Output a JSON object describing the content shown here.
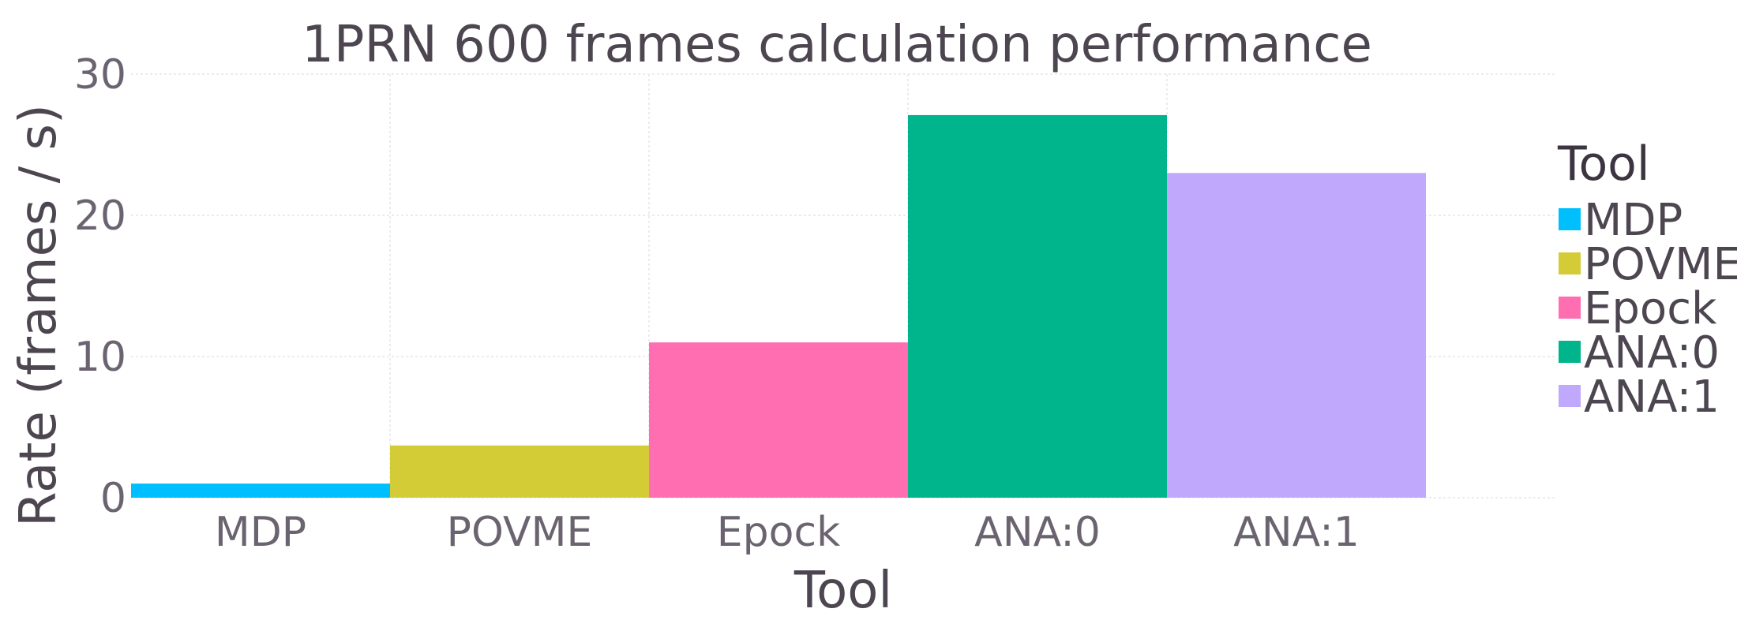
{
  "chart_data": {
    "type": "bar",
    "title": "1PRN 600 frames calculation performance",
    "xlabel": "Tool",
    "ylabel": "Rate (frames / s)",
    "categories": [
      "MDP",
      "POVME",
      "Epock",
      "ANA:0",
      "ANA:1"
    ],
    "values": [
      1.0,
      3.7,
      11.0,
      27.1,
      23.0
    ],
    "colors": [
      "#00bfff",
      "#d4cc37",
      "#ff6eb0",
      "#00b58c",
      "#c0a8fc"
    ],
    "ylim": [
      0,
      30
    ],
    "yticks": [
      0,
      10,
      20,
      30
    ],
    "grid": true,
    "legend": {
      "title": "Tool",
      "position": "right",
      "entries": [
        "MDP",
        "POVME",
        "Epock",
        "ANA:0",
        "ANA:1"
      ]
    }
  }
}
